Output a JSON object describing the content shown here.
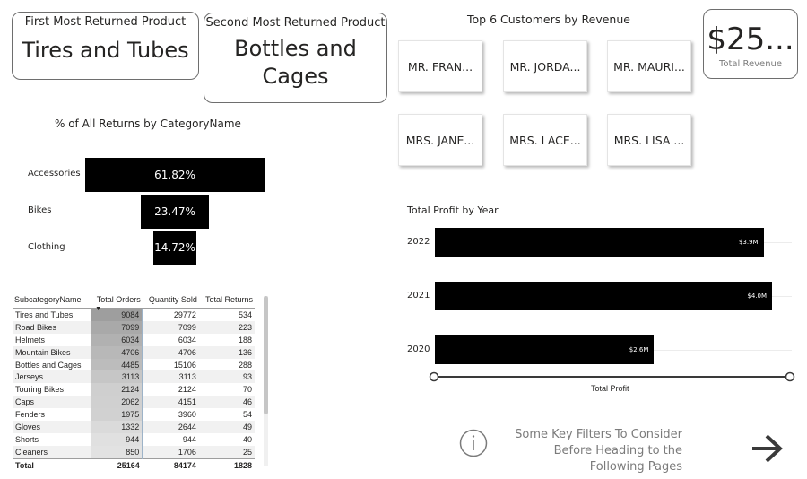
{
  "cards": {
    "first_returned": {
      "caption": "First Most Returned Product",
      "value": "Tires and Tubes"
    },
    "second_returned": {
      "caption": "Second Most Returned Product",
      "value_line1": "Bottles and",
      "value_line2": "Cages"
    },
    "total_revenue": {
      "value": "$25...",
      "caption": "Total Revenue"
    }
  },
  "top_customers": {
    "title": "Top 6 Customers by Revenue",
    "items": [
      "MR. FRAN...",
      "MR. JORDA...",
      "MR. MAURI...",
      "MRS. JANE...",
      "MRS. LACE...",
      "MRS. LISA ..."
    ]
  },
  "returns_funnel": {
    "title": "% of All Returns by CategoryName",
    "items": [
      {
        "label": "Accessories",
        "value": 61.82,
        "display": "61.82%"
      },
      {
        "label": "Bikes",
        "value": 23.47,
        "display": "23.47%"
      },
      {
        "label": "Clothing",
        "value": 14.72,
        "display": "14.72%"
      }
    ]
  },
  "matrix": {
    "columns": [
      "SubcategoryName",
      "Total Orders",
      "Quantity Sold",
      "Total Returns"
    ],
    "rows": [
      [
        "Tires and Tubes",
        "9084",
        "29772",
        "534"
      ],
      [
        "Road Bikes",
        "7099",
        "7099",
        "223"
      ],
      [
        "Helmets",
        "6034",
        "6034",
        "188"
      ],
      [
        "Mountain Bikes",
        "4706",
        "4706",
        "136"
      ],
      [
        "Bottles and Cages",
        "4485",
        "15106",
        "288"
      ],
      [
        "Jerseys",
        "3113",
        "3113",
        "93"
      ],
      [
        "Touring Bikes",
        "2124",
        "2124",
        "70"
      ],
      [
        "Caps",
        "2062",
        "4151",
        "46"
      ],
      [
        "Fenders",
        "1975",
        "3960",
        "54"
      ],
      [
        "Gloves",
        "1332",
        "2644",
        "49"
      ],
      [
        "Shorts",
        "944",
        "944",
        "40"
      ],
      [
        "Cleaners",
        "850",
        "1706",
        "25"
      ]
    ],
    "total": [
      "Total",
      "25164",
      "84174",
      "1828"
    ],
    "heat_colors": [
      "#9e9e9e",
      "#a9a9a9",
      "#b1b1b1",
      "#b8b8b8",
      "#bcbcbc",
      "#c6c6c6",
      "#cfcfcf",
      "#d0d0d0",
      "#d1d1d1",
      "#dadada",
      "#e0e0e0",
      "#e2e2e2"
    ]
  },
  "chart_data": {
    "type": "bar",
    "title": "Total Profit by Year",
    "xlabel": "Total Profit",
    "categories": [
      "2022",
      "2021",
      "2020"
    ],
    "values": [
      3.9,
      4.0,
      2.6
    ],
    "value_labels": [
      "$3.9M",
      "$4.0M",
      "$2.6M"
    ],
    "xlim": [
      0,
      4.0
    ]
  },
  "info": {
    "text": "Some Key Filters To Consider Before Heading to the Following Pages"
  }
}
